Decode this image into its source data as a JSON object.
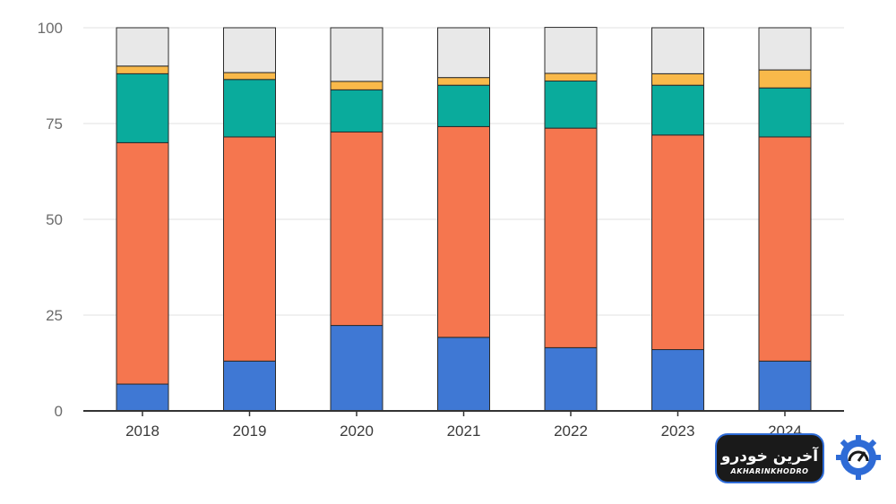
{
  "chart_data": {
    "type": "bar",
    "stacked": true,
    "categories": [
      "2018",
      "2019",
      "2020",
      "2021",
      "2022",
      "2023",
      "2024"
    ],
    "ylim": [
      0,
      100
    ],
    "yticks": [
      "0",
      "25",
      "50",
      "75",
      "100"
    ],
    "grid": true,
    "legend": "none",
    "series": [
      {
        "color": "#3f78d4",
        "values": [
          7,
          13,
          22.3,
          19.2,
          16.5,
          16,
          13
        ]
      },
      {
        "color": "#f5764f",
        "values": [
          63,
          58.5,
          50.5,
          55,
          57.3,
          56,
          58.5
        ]
      },
      {
        "color": "#0aab9c",
        "values": [
          18,
          15,
          11,
          10.8,
          12.3,
          13,
          12.8
        ]
      },
      {
        "color": "#f9b94a",
        "values": [
          2,
          1.8,
          2.2,
          2,
          2,
          3,
          4.7
        ]
      },
      {
        "color": "#e8e8e8",
        "values": [
          10,
          11.7,
          14,
          13,
          12,
          12,
          11
        ]
      }
    ]
  },
  "watermark": {
    "text_fa": "آخرین خودرو",
    "text_en": "AKHARINKHODRO",
    "icon": "speedometer-gear-icon",
    "colors": {
      "box": "#1a1a1a",
      "accent": "#2e6bd6",
      "text": "#ffffff"
    }
  }
}
